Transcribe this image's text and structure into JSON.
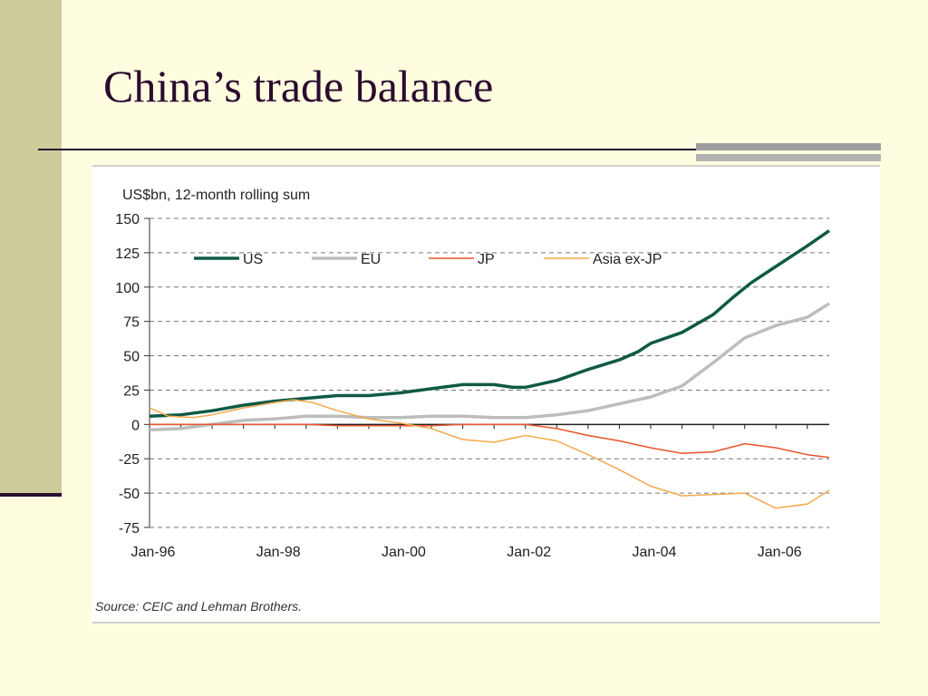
{
  "slide": {
    "title": "China’s trade balance"
  },
  "chart_data": {
    "type": "line",
    "unit_label": "US$bn, 12-month rolling sum",
    "source": "Source: CEIC and Lehman Brothers.",
    "ylim": [
      -75,
      150
    ],
    "yticks": [
      150,
      125,
      100,
      75,
      50,
      25,
      0,
      -25,
      -50,
      -75
    ],
    "x_range": [
      1996.0,
      2006.85
    ],
    "xticks": [
      {
        "value": 1996,
        "label": "Jan-96"
      },
      {
        "value": 1998,
        "label": "Jan-98"
      },
      {
        "value": 2000,
        "label": "Jan-00"
      },
      {
        "value": 2002,
        "label": "Jan-02"
      },
      {
        "value": 2004,
        "label": "Jan-04"
      },
      {
        "value": 2006,
        "label": "Jan-06"
      }
    ],
    "grid": "horizontal dashed",
    "legend_position": "top-left",
    "series": [
      {
        "name": "US",
        "color": "#0f5a45",
        "points": [
          [
            1996.0,
            6
          ],
          [
            1996.5,
            7
          ],
          [
            1997.0,
            10
          ],
          [
            1997.5,
            14
          ],
          [
            1998.0,
            17
          ],
          [
            1998.5,
            19
          ],
          [
            1999.0,
            21
          ],
          [
            1999.5,
            21
          ],
          [
            2000.0,
            23
          ],
          [
            2000.5,
            26
          ],
          [
            2001.0,
            29
          ],
          [
            2001.5,
            29
          ],
          [
            2001.8,
            27
          ],
          [
            2002.0,
            27
          ],
          [
            2002.5,
            32
          ],
          [
            2003.0,
            40
          ],
          [
            2003.5,
            47
          ],
          [
            2003.8,
            53
          ],
          [
            2004.0,
            59
          ],
          [
            2004.5,
            67
          ],
          [
            2005.0,
            80
          ],
          [
            2005.3,
            92
          ],
          [
            2005.6,
            103
          ],
          [
            2006.0,
            115
          ],
          [
            2006.5,
            130
          ],
          [
            2006.85,
            141
          ]
        ]
      },
      {
        "name": "EU",
        "color": "#bdbdbd",
        "points": [
          [
            1996.0,
            -4
          ],
          [
            1996.5,
            -3
          ],
          [
            1997.0,
            0
          ],
          [
            1997.5,
            3
          ],
          [
            1998.0,
            4
          ],
          [
            1998.5,
            6
          ],
          [
            1999.0,
            6
          ],
          [
            1999.5,
            5
          ],
          [
            2000.0,
            5
          ],
          [
            2000.5,
            6
          ],
          [
            2001.0,
            6
          ],
          [
            2001.5,
            5
          ],
          [
            2002.0,
            5
          ],
          [
            2002.5,
            7
          ],
          [
            2003.0,
            10
          ],
          [
            2003.5,
            15
          ],
          [
            2004.0,
            20
          ],
          [
            2004.5,
            28
          ],
          [
            2005.0,
            45
          ],
          [
            2005.5,
            63
          ],
          [
            2006.0,
            72
          ],
          [
            2006.5,
            78
          ],
          [
            2006.85,
            88
          ]
        ]
      },
      {
        "name": "JP",
        "color": "#e8542a",
        "points": [
          [
            1996.0,
            0
          ],
          [
            1997.0,
            0
          ],
          [
            1998.0,
            0
          ],
          [
            1998.5,
            0
          ],
          [
            1999.0,
            -1
          ],
          [
            1999.5,
            -1
          ],
          [
            2000.0,
            -1
          ],
          [
            2000.5,
            -1
          ],
          [
            2001.0,
            0
          ],
          [
            2001.5,
            0
          ],
          [
            2002.0,
            0
          ],
          [
            2002.5,
            -3
          ],
          [
            2003.0,
            -8
          ],
          [
            2003.5,
            -12
          ],
          [
            2004.0,
            -17
          ],
          [
            2004.5,
            -21
          ],
          [
            2005.0,
            -20
          ],
          [
            2005.5,
            -14
          ],
          [
            2006.0,
            -17
          ],
          [
            2006.5,
            -22
          ],
          [
            2006.85,
            -24
          ]
        ]
      },
      {
        "name": "Asia ex-JP",
        "color": "#f6a84a",
        "points": [
          [
            1996.0,
            12
          ],
          [
            1996.3,
            6
          ],
          [
            1996.7,
            5
          ],
          [
            1997.0,
            7
          ],
          [
            1997.5,
            12
          ],
          [
            1998.0,
            16
          ],
          [
            1998.3,
            18
          ],
          [
            1998.6,
            16
          ],
          [
            1999.0,
            10
          ],
          [
            1999.5,
            4
          ],
          [
            2000.0,
            1
          ],
          [
            2000.5,
            -3
          ],
          [
            2001.0,
            -11
          ],
          [
            2001.5,
            -13
          ],
          [
            2002.0,
            -8
          ],
          [
            2002.5,
            -12
          ],
          [
            2003.0,
            -22
          ],
          [
            2003.5,
            -33
          ],
          [
            2004.0,
            -45
          ],
          [
            2004.5,
            -52
          ],
          [
            2005.0,
            -51
          ],
          [
            2005.5,
            -50
          ],
          [
            2006.0,
            -61
          ],
          [
            2006.5,
            -58
          ],
          [
            2006.85,
            -48
          ]
        ]
      }
    ]
  }
}
